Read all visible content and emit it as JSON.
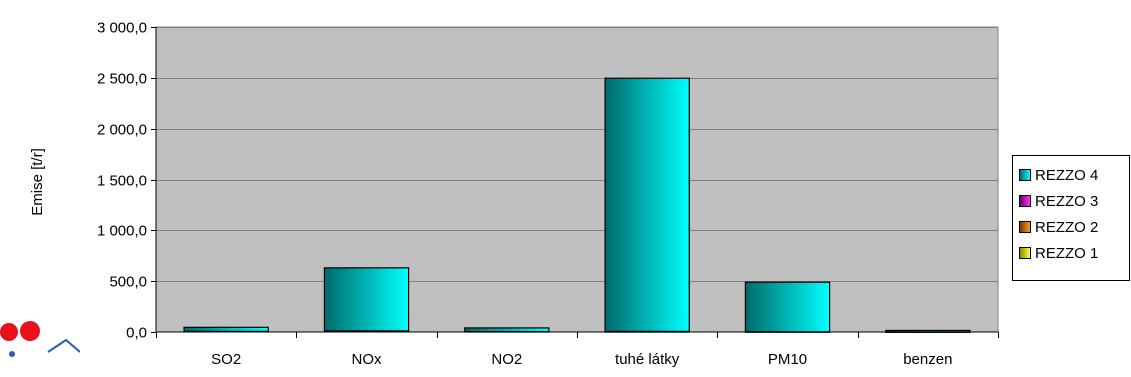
{
  "chart_data": {
    "type": "bar",
    "title": "",
    "xlabel": "",
    "ylabel": "Emise [t/r]",
    "ylim": [
      0,
      3000
    ],
    "yticks": [
      0,
      500,
      1000,
      1500,
      2000,
      2500,
      3000
    ],
    "ytick_labels": [
      "0,0",
      "500,0",
      "1 000,0",
      "1 500,0",
      "2 000,0",
      "2 500,0",
      "3 000,0"
    ],
    "categories": [
      "SO2",
      "NOx",
      "NO2",
      "tuhé látky",
      "PM10",
      "benzen"
    ],
    "stacked": true,
    "grid": true,
    "legend_position": "right",
    "series": [
      {
        "name": "REZZO 1",
        "color": "#e8e800",
        "values": [
          3,
          5,
          2,
          1,
          0.5,
          0.1
        ]
      },
      {
        "name": "REZZO 2",
        "color": "#d87a00",
        "values": [
          2,
          4,
          1,
          3,
          1,
          0.1
        ]
      },
      {
        "name": "REZZO 3",
        "color": "#d000d0",
        "values": [
          1,
          2,
          1,
          2,
          0.5,
          0.1
        ]
      },
      {
        "name": "REZZO 4",
        "color": "#00e5e5",
        "values": [
          40,
          620,
          36,
          2490,
          488,
          15
        ]
      }
    ],
    "legend_order": [
      "REZZO 4",
      "REZZO 3",
      "REZZO 2",
      "REZZO 1"
    ],
    "plot_background": "#c0c0c0"
  }
}
